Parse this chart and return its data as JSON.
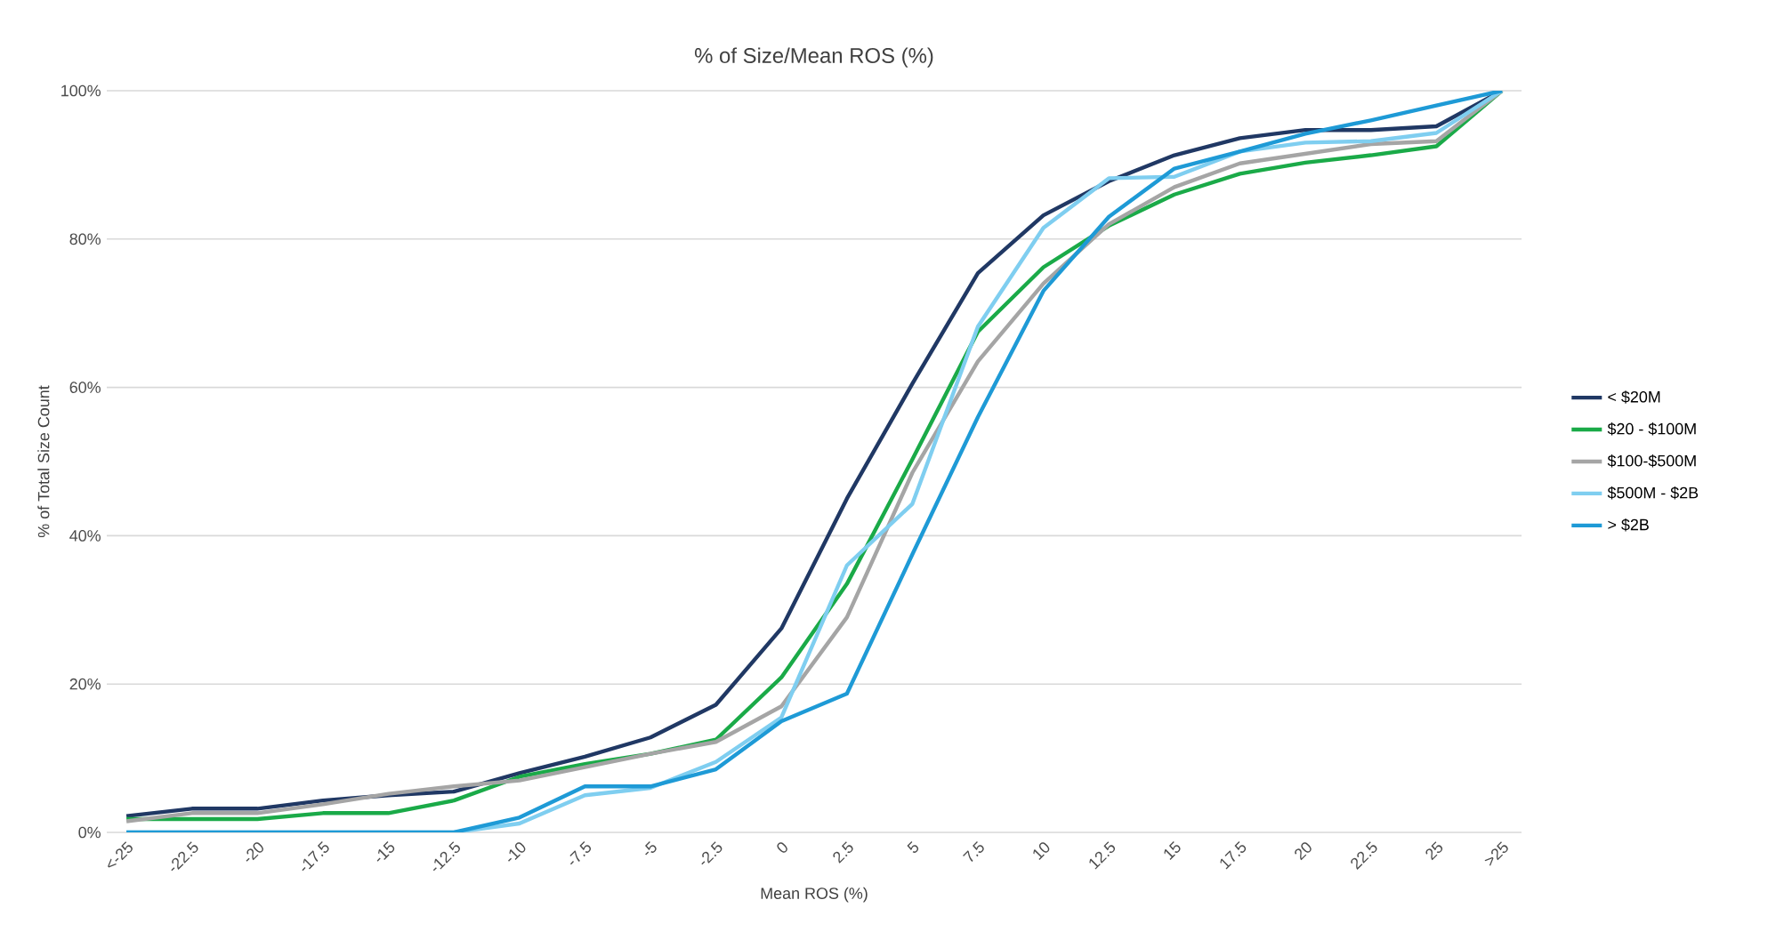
{
  "chart_data": {
    "type": "line",
    "title": "% of Size/Mean ROS (%)",
    "xlabel": "Mean ROS (%)",
    "ylabel": "% of Total Size Count",
    "categories": [
      "<-25",
      "-22.5",
      "-20",
      "-17.5",
      "-15",
      "-12.5",
      "-10",
      "-7.5",
      "-5",
      "-2.5",
      "0",
      "2.5",
      "5",
      "7.5",
      "10",
      "12.5",
      "15",
      "17.5",
      "20",
      "22.5",
      "25",
      ">25"
    ],
    "ylim": [
      0,
      100
    ],
    "yticks": [
      {
        "value": 0,
        "label": "0%"
      },
      {
        "value": 20,
        "label": "20%"
      },
      {
        "value": 40,
        "label": "40%"
      },
      {
        "value": 60,
        "label": "60%"
      },
      {
        "value": 80,
        "label": "80%"
      },
      {
        "value": 100,
        "label": "100%"
      }
    ],
    "grid": "y",
    "legend": "right",
    "marker": "none",
    "line_style": "solid",
    "series": [
      {
        "name": "< $20M",
        "color": "#203864",
        "values": [
          2.2,
          3.2,
          3.2,
          4.3,
          5,
          5.5,
          8,
          10.2,
          12.8,
          17.2,
          27.5,
          45,
          60.5,
          75.4,
          83.2,
          87.8,
          91.3,
          93.6,
          94.7,
          94.7,
          95.2,
          100
        ]
      },
      {
        "name": "$20 - $100M",
        "color": "#1aaa48",
        "values": [
          1.8,
          1.8,
          1.8,
          2.6,
          2.6,
          4.3,
          7.5,
          9.2,
          10.6,
          12.5,
          20.9,
          33.5,
          50.3,
          67.5,
          76.2,
          81.8,
          86,
          88.8,
          90.3,
          91.3,
          92.5,
          100
        ]
      },
      {
        "name": "$100-$500M",
        "color": "#a5a5a5",
        "values": [
          1.5,
          2.6,
          2.6,
          3.8,
          5.2,
          6.2,
          7,
          8.8,
          10.6,
          12.2,
          17,
          29,
          48.5,
          63.5,
          74,
          82,
          87,
          90.2,
          91.5,
          92.8,
          93.2,
          100
        ]
      },
      {
        "name": "$500M - $2B",
        "color": "#7fcef0",
        "values": [
          0,
          0,
          0,
          0,
          0,
          0,
          1.2,
          5,
          6,
          9.5,
          15.5,
          36,
          44.3,
          68.2,
          81.5,
          88.2,
          88.4,
          91.8,
          93,
          93.2,
          94.3,
          100
        ]
      },
      {
        "name": "> $2B",
        "color": "#1e9ad6",
        "values": [
          0,
          0,
          0,
          0,
          0,
          0,
          2,
          6.2,
          6.2,
          8.5,
          15,
          18.7,
          37.5,
          56,
          73,
          83,
          89.5,
          91.8,
          94.2,
          96,
          98,
          100
        ]
      }
    ]
  }
}
